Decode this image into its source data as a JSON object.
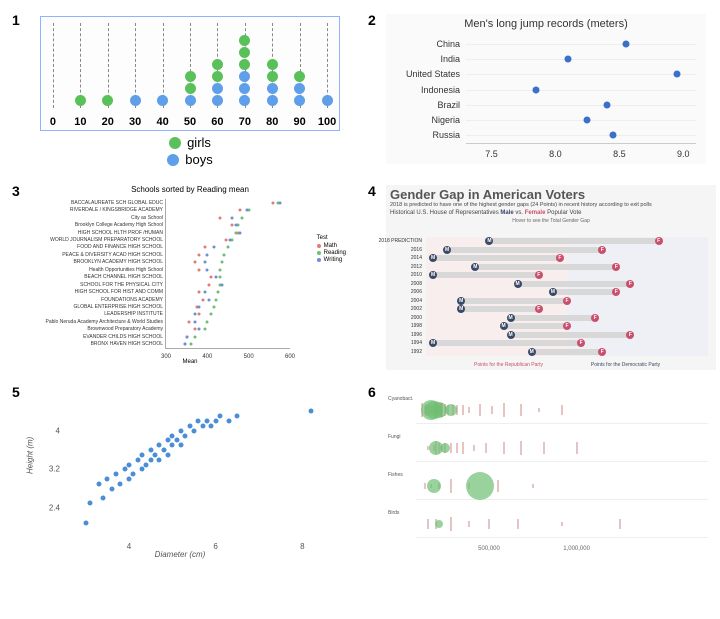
{
  "panels": [
    "1",
    "2",
    "3",
    "4",
    "5",
    "6"
  ],
  "p1": {
    "type": "stacked-dot",
    "border_color": "#8fb4ff",
    "grid_dash_color": "#888888",
    "x_ticks": [
      0,
      10,
      20,
      30,
      40,
      50,
      60,
      70,
      80,
      90,
      100
    ],
    "x_pad_pct": 4,
    "dot_diameter": 11,
    "stacks": [
      {
        "x": 10,
        "dots": [
          {
            "c": "#5ac15a"
          }
        ]
      },
      {
        "x": 20,
        "dots": [
          {
            "c": "#5ac15a"
          }
        ]
      },
      {
        "x": 30,
        "dots": [
          {
            "c": "#5f9ee8"
          }
        ]
      },
      {
        "x": 40,
        "dots": [
          {
            "c": "#5f9ee8"
          }
        ]
      },
      {
        "x": 50,
        "dots": [
          {
            "c": "#5f9ee8"
          },
          {
            "c": "#5ac15a"
          },
          {
            "c": "#5ac15a"
          }
        ]
      },
      {
        "x": 60,
        "dots": [
          {
            "c": "#5f9ee8"
          },
          {
            "c": "#5f9ee8"
          },
          {
            "c": "#5ac15a"
          },
          {
            "c": "#5ac15a"
          }
        ]
      },
      {
        "x": 70,
        "dots": [
          {
            "c": "#5f9ee8"
          },
          {
            "c": "#5f9ee8"
          },
          {
            "c": "#5f9ee8"
          },
          {
            "c": "#5ac15a"
          },
          {
            "c": "#5ac15a"
          },
          {
            "c": "#5ac15a"
          }
        ]
      },
      {
        "x": 80,
        "dots": [
          {
            "c": "#5f9ee8"
          },
          {
            "c": "#5f9ee8"
          },
          {
            "c": "#5ac15a"
          },
          {
            "c": "#5ac15a"
          }
        ]
      },
      {
        "x": 90,
        "dots": [
          {
            "c": "#5f9ee8"
          },
          {
            "c": "#5f9ee8"
          },
          {
            "c": "#5ac15a"
          }
        ]
      },
      {
        "x": 100,
        "dots": [
          {
            "c": "#5f9ee8"
          }
        ]
      }
    ],
    "legend": [
      {
        "color": "#5ac15a",
        "label": "girls"
      },
      {
        "color": "#5f9ee8",
        "label": "boys"
      }
    ]
  },
  "p2": {
    "type": "dot-horizontal",
    "title": "Men's long jump records (meters)",
    "background": "#fafafa",
    "dot_color": "#3b6fc9",
    "x_ticks": [
      7.5,
      8.0,
      8.5,
      9.0
    ],
    "xlim": [
      7.3,
      9.1
    ],
    "rows": [
      {
        "label": "China",
        "value": 8.55
      },
      {
        "label": "India",
        "value": 8.1
      },
      {
        "label": "United States",
        "value": 8.95
      },
      {
        "label": "Indonesia",
        "value": 7.85
      },
      {
        "label": "Brazil",
        "value": 8.4
      },
      {
        "label": "Nigeria",
        "value": 8.25
      },
      {
        "label": "Russia",
        "value": 8.45
      }
    ]
  },
  "p3": {
    "type": "dot-horizontal-multi",
    "title": "Schools sorted by Reading mean",
    "xaxis_title": "Mean",
    "legend_title": "Test",
    "xlim": [
      300,
      600
    ],
    "x_ticks": [
      300,
      400,
      500,
      600
    ],
    "series": [
      {
        "name": "Math",
        "color": "#e07b7b"
      },
      {
        "name": "Reading",
        "color": "#6fbf73"
      },
      {
        "name": "Writing",
        "color": "#6b8fd6"
      }
    ],
    "rows": [
      {
        "label": "BACCALAUREATE SCH GLOBAL EDUC",
        "v": [
          560,
          570,
          575
        ]
      },
      {
        "label": "RIVERDALE / KINGSBRIDGE ACADEMY",
        "v": [
          480,
          500,
          495
        ]
      },
      {
        "label": "City as School",
        "v": [
          430,
          485,
          460
        ]
      },
      {
        "label": "Brooklyn College Academy High School",
        "v": [
          460,
          475,
          470
        ]
      },
      {
        "label": "HIGH SCHOOL HLTH PROF /HUMAN",
        "v": [
          475,
          470,
          480
        ]
      },
      {
        "label": "WORLD JOURNALISM PREPARATORY SCHOOL",
        "v": [
          445,
          460,
          455
        ]
      },
      {
        "label": "FOOD AND FINANCE HIGH SCHOOL",
        "v": [
          395,
          450,
          415
        ]
      },
      {
        "label": "PEACE & DIVERSITY ACAD HIGH SCHOOL",
        "v": [
          380,
          440,
          400
        ]
      },
      {
        "label": "BROOKLYN ACADEMY HIGH SCHOOL",
        "v": [
          370,
          435,
          395
        ]
      },
      {
        "label": "Health Opportunities High School",
        "v": [
          380,
          430,
          400
        ]
      },
      {
        "label": "BEACH CHANNEL HIGH SCHOOL",
        "v": [
          410,
          430,
          420
        ]
      },
      {
        "label": "SCHOOL FOR THE PHYSICAL CITY",
        "v": [
          405,
          430,
          435
        ]
      },
      {
        "label": "HIGH SCHOOL FOR HIST AND COMM",
        "v": [
          380,
          425,
          395
        ]
      },
      {
        "label": "FOUNDATIONS ACADEMY",
        "v": [
          390,
          420,
          405
        ]
      },
      {
        "label": "GLOBAL ENTERPRISE HIGH SCHOOL",
        "v": [
          375,
          415,
          380
        ]
      },
      {
        "label": "LEADERSHIP INSTITUTE",
        "v": [
          380,
          410,
          370
        ]
      },
      {
        "label": "Pablo Neruda Academy Architecture & World Studies",
        "v": [
          355,
          400,
          370
        ]
      },
      {
        "label": "Brownwood Preparatory Academy",
        "v": [
          370,
          395,
          380
        ]
      },
      {
        "label": "EVANDER CHILDS HIGH SCHOOL",
        "v": [
          350,
          370,
          350
        ]
      },
      {
        "label": "BRONX HAVEN HIGH SCHOOL",
        "v": [
          345,
          360,
          345
        ]
      }
    ]
  },
  "p4": {
    "type": "dumbbell",
    "title": "Gender Gap in American Voters",
    "subtitle": "2018 is predicted to have one of the highest gender gaps (24 Points) in recent history according to exit polls",
    "subtitle2": "Historical U.S. House of Representatives Male vs. Female Popular Vote",
    "male_word": "Male",
    "female_word": "Female",
    "hover_hint": "Hover to see the Total Gender Gap",
    "footer_left": "Points for the Republican Party",
    "footer_right": "Points for the Democratic Party",
    "male_color": "#3a4a66",
    "female_color": "#c94f6d",
    "bar_color": "#d8d8d8",
    "bg_left": "#fce8e8",
    "bg_right": "#e8ecf5",
    "xlim": [
      -15,
      25
    ],
    "rows": [
      {
        "year": "2018 PREDICTION",
        "m": -6,
        "f": 18
      },
      {
        "year": "2016",
        "m": -12,
        "f": 10
      },
      {
        "year": "2014",
        "m": -14,
        "f": 4
      },
      {
        "year": "2012",
        "m": -8,
        "f": 12
      },
      {
        "year": "2010",
        "m": -14,
        "f": 1
      },
      {
        "year": "2008",
        "m": -2,
        "f": 14
      },
      {
        "year": "2006",
        "m": 3,
        "f": 12
      },
      {
        "year": "2004",
        "m": -10,
        "f": 5
      },
      {
        "year": "2002",
        "m": -10,
        "f": 1
      },
      {
        "year": "2000",
        "m": -3,
        "f": 9
      },
      {
        "year": "1998",
        "m": -4,
        "f": 5
      },
      {
        "year": "1996",
        "m": -3,
        "f": 14
      },
      {
        "year": "1994",
        "m": -14,
        "f": 7
      },
      {
        "year": "1992",
        "m": 0,
        "f": 10
      }
    ]
  },
  "p5": {
    "type": "scatter",
    "xaxis_title": "Diameter (cm)",
    "yaxis_title": "Height (m)",
    "dot_color": "#4a8fd6",
    "xlim": [
      2.5,
      8.5
    ],
    "ylim": [
      1.8,
      4.8
    ],
    "x_ticks": [
      4,
      6,
      8
    ],
    "y_ticks": [
      2.4,
      3.2,
      4
    ],
    "points": [
      [
        3.0,
        2.1
      ],
      [
        3.1,
        2.5
      ],
      [
        3.3,
        2.9
      ],
      [
        3.4,
        2.6
      ],
      [
        3.5,
        3.0
      ],
      [
        3.6,
        2.8
      ],
      [
        3.7,
        3.1
      ],
      [
        3.8,
        2.9
      ],
      [
        3.9,
        3.2
      ],
      [
        4.0,
        3.0
      ],
      [
        4.0,
        3.3
      ],
      [
        4.1,
        3.1
      ],
      [
        4.2,
        3.4
      ],
      [
        4.3,
        3.2
      ],
      [
        4.3,
        3.5
      ],
      [
        4.4,
        3.3
      ],
      [
        4.5,
        3.6
      ],
      [
        4.5,
        3.4
      ],
      [
        4.6,
        3.5
      ],
      [
        4.7,
        3.7
      ],
      [
        4.7,
        3.4
      ],
      [
        4.8,
        3.6
      ],
      [
        4.9,
        3.8
      ],
      [
        4.9,
        3.5
      ],
      [
        5.0,
        3.7
      ],
      [
        5.0,
        3.9
      ],
      [
        5.1,
        3.8
      ],
      [
        5.2,
        4.0
      ],
      [
        5.2,
        3.7
      ],
      [
        5.3,
        3.9
      ],
      [
        5.4,
        4.1
      ],
      [
        5.5,
        4.0
      ],
      [
        5.6,
        4.2
      ],
      [
        5.7,
        4.1
      ],
      [
        5.8,
        4.2
      ],
      [
        5.9,
        4.1
      ],
      [
        6.0,
        4.2
      ],
      [
        6.1,
        4.3
      ],
      [
        6.3,
        4.2
      ],
      [
        6.5,
        4.3
      ],
      [
        8.2,
        4.4
      ]
    ]
  },
  "p6": {
    "type": "strip-categorical",
    "tick_color": "#cc8888",
    "bubble_color": "#6fbf73",
    "xlim": [
      0,
      1
    ],
    "x_ticks": [
      {
        "pos": 0.25,
        "label": "500,000"
      },
      {
        "pos": 0.55,
        "label": "1,000,000"
      },
      {
        "pos": 0.85,
        "label": ""
      }
    ],
    "rows": [
      {
        "label": "Cyanobact.",
        "y": 10,
        "h": 28,
        "ticks": [
          0.02,
          0.03,
          0.035,
          0.04,
          0.042,
          0.045,
          0.05,
          0.052,
          0.055,
          0.06,
          0.065,
          0.07,
          0.072,
          0.075,
          0.08,
          0.085,
          0.09,
          0.1,
          0.11,
          0.125,
          0.14,
          0.16,
          0.18,
          0.22,
          0.26,
          0.3,
          0.36,
          0.42,
          0.5
        ],
        "bubbles": [
          {
            "x": 0.05,
            "r": 10
          },
          {
            "x": 0.08,
            "r": 8
          },
          {
            "x": 0.12,
            "r": 6
          },
          {
            "x": 0.06,
            "r": 9
          }
        ]
      },
      {
        "label": "Fungi",
        "y": 48,
        "h": 28,
        "ticks": [
          0.04,
          0.06,
          0.07,
          0.08,
          0.1,
          0.12,
          0.14,
          0.16,
          0.2,
          0.24,
          0.3,
          0.36,
          0.44,
          0.55
        ],
        "bubbles": [
          {
            "x": 0.07,
            "r": 7
          },
          {
            "x": 0.1,
            "r": 5
          }
        ]
      },
      {
        "label": "Fishes",
        "y": 86,
        "h": 28,
        "ticks": [
          0.03,
          0.05,
          0.08,
          0.12,
          0.18,
          0.28,
          0.4
        ],
        "bubbles": [
          {
            "x": 0.22,
            "r": 14
          },
          {
            "x": 0.06,
            "r": 7
          }
        ]
      },
      {
        "label": "Birds",
        "y": 124,
        "h": 28,
        "ticks": [
          0.04,
          0.07,
          0.12,
          0.18,
          0.25,
          0.35,
          0.5,
          0.7
        ],
        "bubbles": [
          {
            "x": 0.08,
            "r": 4
          }
        ]
      }
    ]
  }
}
